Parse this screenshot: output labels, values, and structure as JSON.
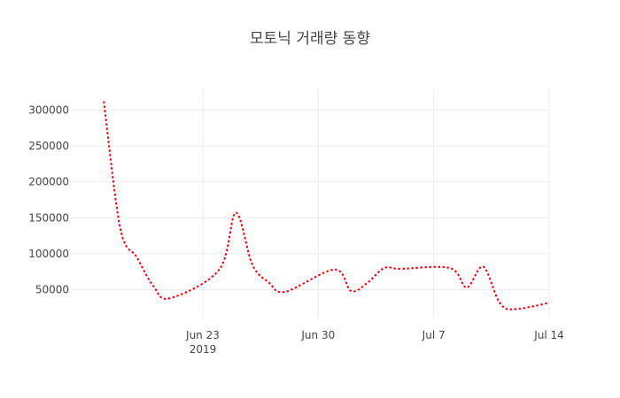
{
  "chart_data": {
    "type": "line",
    "title": "모토닉 거래량 동향",
    "xlabel": "",
    "ylabel": "",
    "x_range": [
      "2019-06-15",
      "2019-07-14"
    ],
    "y_range": [
      10000,
      330000
    ],
    "y_ticks": [
      50000,
      100000,
      150000,
      200000,
      250000,
      300000
    ],
    "y_tick_labels": [
      "50000",
      "100000",
      "150000",
      "200000",
      "250000",
      "300000"
    ],
    "x_ticks": [
      "2019-06-23",
      "2019-06-30",
      "2019-07-07",
      "2019-07-14"
    ],
    "x_tick_labels": [
      "Jun 23",
      "Jun 30",
      "Jul 7",
      "Jul 14"
    ],
    "x_tick_sublabel": "2019",
    "grid": true,
    "legend": "none",
    "line_style": "dotted",
    "series": [
      {
        "color": "#e8000b",
        "x": [
          "2019-06-17",
          "2019-06-18",
          "2019-06-19",
          "2019-06-20",
          "2019-06-21",
          "2019-06-24",
          "2019-06-25",
          "2019-06-26",
          "2019-06-27",
          "2019-06-28",
          "2019-07-01",
          "2019-07-02",
          "2019-07-03",
          "2019-07-04",
          "2019-07-05",
          "2019-07-08",
          "2019-07-09",
          "2019-07-10",
          "2019-07-11",
          "2019-07-12",
          "2019-07-15"
        ],
        "y": [
          312000,
          135000,
          95000,
          55000,
          38000,
          78000,
          157000,
          85000,
          60000,
          47000,
          78000,
          48000,
          60000,
          80000,
          79000,
          80000,
          53000,
          82000,
          32000,
          23000,
          37000
        ]
      }
    ]
  }
}
